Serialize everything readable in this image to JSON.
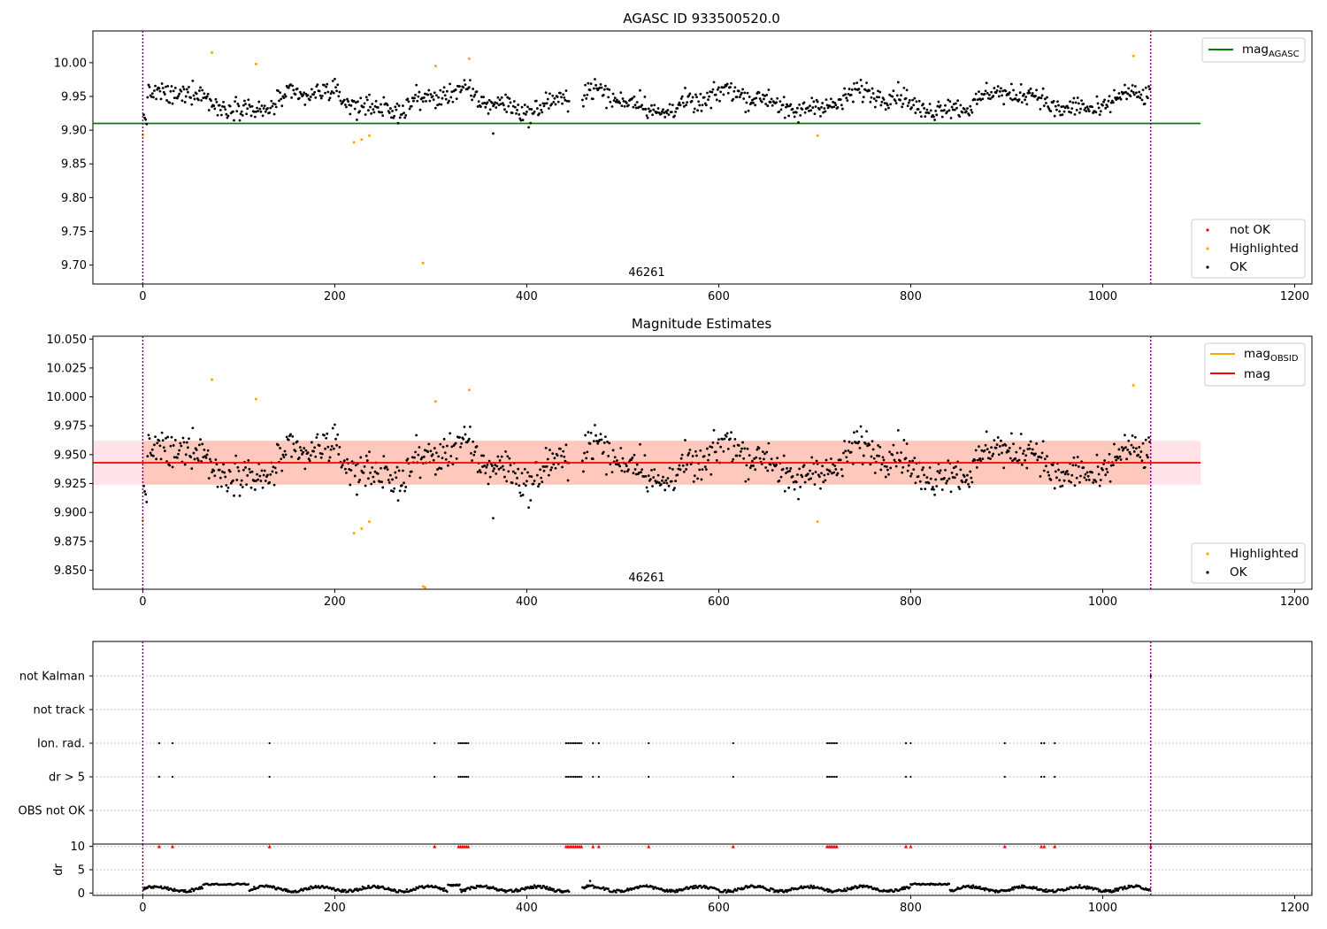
{
  "colors": {
    "ok": "#000000",
    "highlighted": "#ffa500",
    "not_ok": "#ff0000",
    "agasc_line": "#008000",
    "mag_line": "#ff0000",
    "obsid_line": "#ffa500",
    "band_outer": "#ffc0cb",
    "band_inner": "#ffa07a",
    "vline": "#800080"
  },
  "chart_data": [
    {
      "type": "scatter",
      "title": "AGASC ID 933500520.0",
      "xlabel": "",
      "ylabel": "",
      "xlim": [
        -52,
        1218
      ],
      "ylim": [
        9.672,
        10.047
      ],
      "xticks": [
        0,
        200,
        400,
        600,
        800,
        1000,
        1200
      ],
      "xtick_labels": [
        "0",
        "200",
        "400",
        "600",
        "800",
        "1000",
        "1200"
      ],
      "yticks": [
        9.7,
        9.75,
        9.8,
        9.85,
        9.9,
        9.95,
        10.0
      ],
      "ytick_labels": [
        "9.70",
        "9.75",
        "9.80",
        "9.85",
        "9.90",
        "9.95",
        "10.00"
      ],
      "hline": {
        "label": "mag",
        "label_sub": "AGASC",
        "y": 9.91,
        "x": [
          -52,
          1102
        ]
      },
      "vlines": [
        0,
        1050
      ],
      "annotation": {
        "text": "46261",
        "x": 525
      },
      "legend_top": [
        {
          "label": "mag",
          "sub": "AGASC",
          "kind": "line",
          "color": "agasc_line"
        }
      ],
      "legend_bottom": [
        {
          "label": "not OK",
          "kind": "dot",
          "color": "not_ok"
        },
        {
          "label": "Highlighted",
          "kind": "dot",
          "color": "highlighted"
        },
        {
          "label": "OK",
          "kind": "dot",
          "color": "ok"
        }
      ],
      "series": [
        {
          "name": "Highlighted",
          "color": "highlighted",
          "points": [
            [
              0,
              9.893
            ],
            [
              72,
              10.015
            ],
            [
              118,
              9.998
            ],
            [
              220,
              9.882
            ],
            [
              228,
              9.886
            ],
            [
              236,
              9.892
            ],
            [
              292,
              9.703
            ],
            [
              305,
              9.995
            ],
            [
              340,
              10.006
            ],
            [
              703,
              9.892
            ],
            [
              1032,
              10.01
            ]
          ]
        }
      ]
    },
    {
      "type": "scatter",
      "title": "Magnitude Estimates",
      "xlabel": "",
      "ylabel": "",
      "xlim": [
        -52,
        1218
      ],
      "ylim": [
        9.8335,
        10.0525
      ],
      "xticks": [
        0,
        200,
        400,
        600,
        800,
        1000,
        1200
      ],
      "xtick_labels": [
        "0",
        "200",
        "400",
        "600",
        "800",
        "1000",
        "1200"
      ],
      "yticks": [
        9.85,
        9.875,
        9.9,
        9.925,
        9.95,
        9.975,
        10.0,
        10.025,
        10.05
      ],
      "ytick_labels": [
        "9.850",
        "9.875",
        "9.900",
        "9.925",
        "9.950",
        "9.975",
        "10.000",
        "10.025",
        "10.050"
      ],
      "hline": {
        "label": "mag",
        "y": 9.943,
        "x": [
          -52,
          1102
        ]
      },
      "band": {
        "y0": 9.924,
        "y1": 9.962,
        "x0": -52,
        "x1": 1102,
        "inner_x0": 0,
        "inner_x1": 1050
      },
      "vlines": [
        0,
        1050
      ],
      "annotation": {
        "text": "46261",
        "x": 525
      },
      "legend_top": [
        {
          "label": "mag",
          "sub": "OBSID",
          "kind": "line",
          "color": "obsid_line"
        },
        {
          "label": "mag",
          "kind": "line",
          "color": "mag_line"
        }
      ],
      "legend_bottom": [
        {
          "label": "Highlighted",
          "kind": "dot",
          "color": "highlighted"
        },
        {
          "label": "OK",
          "kind": "dot",
          "color": "ok"
        }
      ],
      "series": [
        {
          "name": "Highlighted",
          "color": "highlighted",
          "points": [
            [
              0,
              9.893
            ],
            [
              72,
              10.015
            ],
            [
              118,
              9.998
            ],
            [
              220,
              9.882
            ],
            [
              228,
              9.886
            ],
            [
              236,
              9.892
            ],
            [
              292,
              9.836
            ],
            [
              294,
              9.835
            ],
            [
              305,
              9.996
            ],
            [
              340,
              10.006
            ],
            [
              703,
              9.892
            ],
            [
              1032,
              10.01
            ]
          ]
        }
      ]
    },
    {
      "type": "scatter",
      "title": "",
      "xlabel": "",
      "ylabel": "",
      "xlim": [
        -52,
        1218
      ],
      "xticks": [
        0,
        200,
        400,
        600,
        800,
        1000,
        1200
      ],
      "xtick_labels": [
        "0",
        "200",
        "400",
        "600",
        "800",
        "1000",
        "1200"
      ],
      "categories": [
        "not Kalman",
        "not track",
        "Ion. rad.",
        "dr > 5",
        "OBS not OK"
      ],
      "vlines": [
        0,
        1050
      ],
      "flags": {
        "Ion. rad.": [
          17,
          31,
          132,
          304,
          329,
          331,
          333,
          335,
          337,
          339,
          441,
          443,
          445,
          447,
          449,
          451,
          453,
          455,
          457,
          469,
          475,
          527,
          615,
          713,
          715,
          717,
          719,
          721,
          723,
          795,
          800,
          898,
          936,
          939,
          950
        ],
        "dr > 5": [
          17,
          31,
          132,
          304,
          329,
          331,
          333,
          335,
          337,
          339,
          441,
          443,
          445,
          447,
          449,
          451,
          453,
          455,
          457,
          469,
          475,
          527,
          615,
          713,
          715,
          717,
          719,
          721,
          723,
          795,
          800,
          898,
          936,
          939,
          950
        ],
        "not Kalman": [
          1050
        ]
      }
    },
    {
      "type": "scatter",
      "title": "",
      "xlabel": "",
      "ylabel": "dr",
      "xlim": [
        -52,
        1218
      ],
      "ylim": [
        -0.5,
        10.5
      ],
      "yticks": [
        0,
        5,
        10
      ],
      "ytick_labels": [
        "0",
        "5",
        "10"
      ],
      "xticks": [
        0,
        200,
        400,
        600,
        800,
        1000,
        1200
      ],
      "xtick_labels": [
        "0",
        "200",
        "400",
        "600",
        "800",
        "1000",
        "1200"
      ],
      "vlines": [
        0,
        1050
      ],
      "clipped_y": 10,
      "clipped_x": [
        17,
        31,
        132,
        304,
        329,
        331,
        333,
        335,
        337,
        339,
        441,
        443,
        445,
        447,
        449,
        451,
        453,
        455,
        457,
        469,
        475,
        527,
        615,
        713,
        715,
        717,
        719,
        721,
        723,
        795,
        800,
        898,
        936,
        939,
        950,
        1050
      ]
    }
  ]
}
